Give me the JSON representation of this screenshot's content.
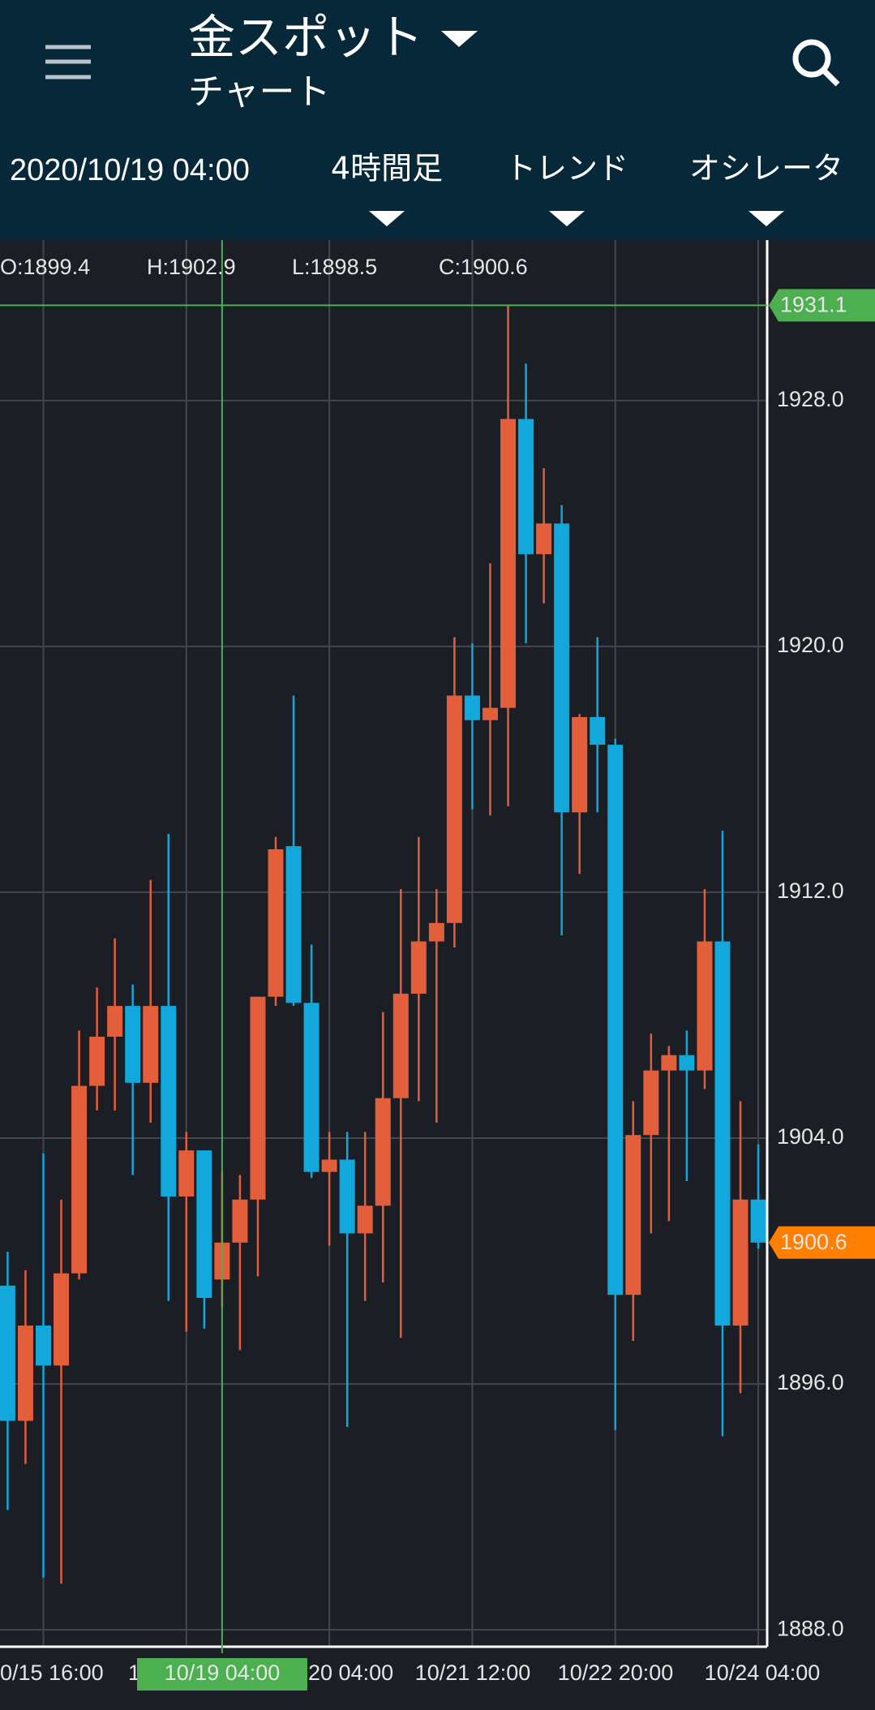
{
  "header": {
    "title": "金スポット",
    "subtitle": "チャート"
  },
  "toolbar": {
    "datetime": "2020/10/19 04:00",
    "timeframe": "4時間足",
    "trend": "トレンド",
    "oscillator": "オシレータ"
  },
  "chart_data": {
    "type": "candlestick",
    "ohlc_info": [
      "O:1899.4",
      "H:1902.9",
      "L:1898.5",
      "C:1900.6"
    ],
    "up_color": "#e35e3b",
    "down_color": "#12a8dc",
    "open": [
      1899.2,
      1894.8,
      1897.9,
      1896.6,
      1899.6,
      1905.7,
      1907.3,
      1908.3,
      1905.8,
      1908.3,
      1902.1,
      1903.6,
      1899.4,
      1900.6,
      1902.0,
      1908.6,
      1913.5,
      1908.4,
      1902.9,
      1903.3,
      1900.9,
      1901.8,
      1905.3,
      1908.7,
      1910.4,
      1911.0,
      1918.4,
      1917.6,
      1918.0,
      1927.4,
      1923.0,
      1924.0,
      1914.6,
      1917.7,
      1916.8,
      1898.9,
      1904.1,
      1906.2,
      1906.7,
      1906.2,
      1910.4,
      1897.9,
      1902.0
    ],
    "high": [
      1900.3,
      1899.7,
      1903.5,
      1902.0,
      1907.5,
      1908.9,
      1910.5,
      1909.0,
      1912.4,
      1913.9,
      1904.2,
      1903.6,
      1902.9,
      1902.8,
      1908.6,
      1913.8,
      1918.4,
      1910.3,
      1904.2,
      1904.2,
      1904.2,
      1908.1,
      1912.1,
      1913.8,
      1912.1,
      1920.3,
      1920.1,
      1922.7,
      1931.1,
      1929.2,
      1925.8,
      1924.6,
      1917.8,
      1920.3,
      1917.0,
      1905.2,
      1907.4,
      1907.0,
      1907.5,
      1912.1,
      1914.0,
      1905.2,
      1903.8
    ],
    "low": [
      1891.9,
      1893.4,
      1889.7,
      1889.5,
      1899.4,
      1904.9,
      1904.9,
      1902.8,
      1904.5,
      1898.7,
      1897.7,
      1897.8,
      1898.5,
      1897.1,
      1899.5,
      1908.3,
      1908.3,
      1902.7,
      1900.5,
      1894.6,
      1898.7,
      1899.3,
      1897.5,
      1905.2,
      1904.5,
      1910.2,
      1914.7,
      1914.5,
      1914.8,
      1920.1,
      1921.4,
      1910.6,
      1912.6,
      1914.6,
      1894.5,
      1897.4,
      1900.9,
      1901.3,
      1902.6,
      1905.6,
      1894.3,
      1895.7,
      1900.4
    ],
    "close": [
      1894.8,
      1897.9,
      1896.6,
      1899.6,
      1905.7,
      1907.3,
      1908.3,
      1905.8,
      1908.3,
      1902.1,
      1903.6,
      1898.8,
      1900.6,
      1902.0,
      1908.6,
      1913.4,
      1908.4,
      1902.9,
      1903.3,
      1900.9,
      1901.8,
      1905.3,
      1908.7,
      1910.4,
      1911.0,
      1918.4,
      1917.6,
      1918.0,
      1927.4,
      1923.0,
      1924.0,
      1914.6,
      1917.7,
      1916.8,
      1898.9,
      1904.1,
      1906.2,
      1906.7,
      1906.2,
      1910.4,
      1897.9,
      1902.0,
      1900.6
    ],
    "ylim": [
      1887.45,
      1933.22
    ],
    "yticks": [
      {
        "value": 1928,
        "label": "1928.0"
      },
      {
        "value": 1920,
        "label": "1920.0"
      },
      {
        "value": 1912,
        "label": "1912.0"
      },
      {
        "value": 1904,
        "label": "1904.0"
      },
      {
        "value": 1896,
        "label": "1896.0"
      },
      {
        "value": 1888,
        "label": "1888.0"
      }
    ],
    "grid": true,
    "x_labels": [
      "0/15 16:00",
      "1",
      "20 04:00",
      "10/21 12:00",
      "10/22 20:00",
      "10/24 04:00"
    ],
    "crosshair": {
      "price": 1931.1,
      "time_label": "10/19 04:00",
      "color": "#4caf50"
    },
    "last_price": {
      "price": 1900.6,
      "color": "#ff7f00"
    }
  }
}
